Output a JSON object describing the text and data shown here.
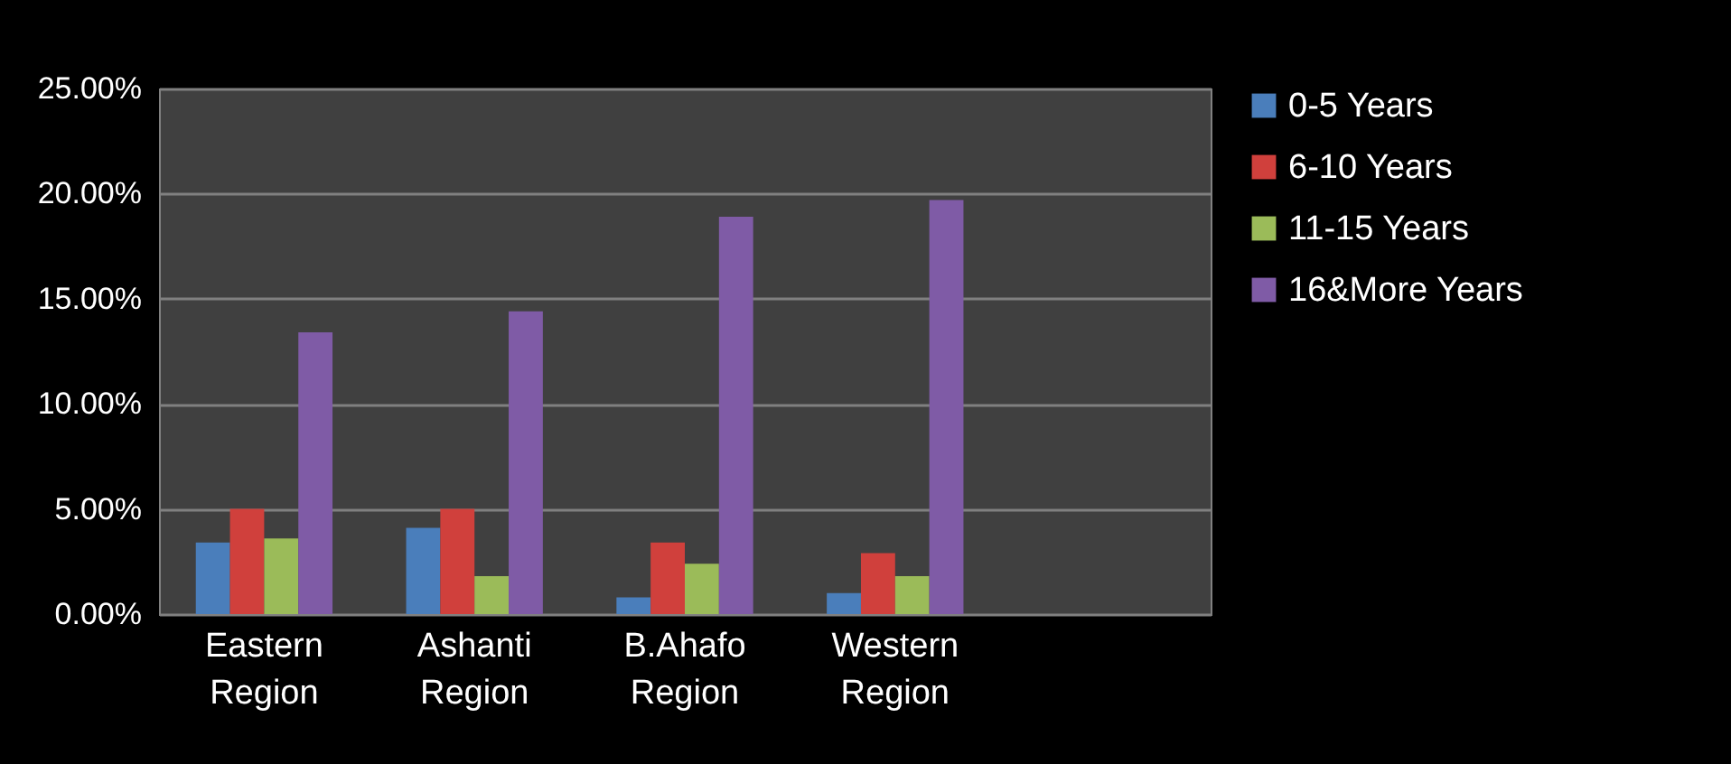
{
  "chart_data": {
    "type": "bar",
    "categories": [
      "Eastern Region",
      "Ashanti Region",
      "B.Ahafo Region",
      "Western Region",
      null
    ],
    "series": [
      {
        "name": "0-5 Years",
        "color": "#4a7ebb",
        "values": [
          3.4,
          4.1,
          0.8,
          1.0,
          null
        ]
      },
      {
        "name": "6-10 Years",
        "color": "#d0403c",
        "values": [
          5.0,
          5.0,
          3.4,
          2.9,
          null
        ]
      },
      {
        "name": "11-15 Years",
        "color": "#9bbb59",
        "values": [
          3.6,
          1.8,
          2.4,
          1.8,
          null
        ]
      },
      {
        "name": "16&More Years",
        "color": "#7f5ba6",
        "values": [
          13.4,
          14.4,
          18.9,
          19.7,
          null
        ]
      }
    ],
    "ylim": [
      0,
      25
    ],
    "yticks": [
      {
        "value": 0,
        "label": "0.00%"
      },
      {
        "value": 5,
        "label": "5.00%"
      },
      {
        "value": 10,
        "label": "10.00%"
      },
      {
        "value": 15,
        "label": "15.00%"
      },
      {
        "value": 20,
        "label": "20.00%"
      },
      {
        "value": 25,
        "label": "25.00%"
      }
    ],
    "grid": "y",
    "legend": "right"
  }
}
